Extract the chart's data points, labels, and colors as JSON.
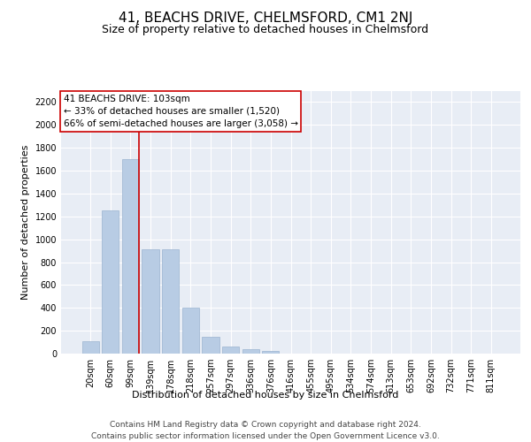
{
  "title": "41, BEACHS DRIVE, CHELMSFORD, CM1 2NJ",
  "subtitle": "Size of property relative to detached houses in Chelmsford",
  "xlabel": "Distribution of detached houses by size in Chelmsford",
  "ylabel": "Number of detached properties",
  "categories": [
    "20sqm",
    "60sqm",
    "99sqm",
    "139sqm",
    "178sqm",
    "218sqm",
    "257sqm",
    "297sqm",
    "336sqm",
    "376sqm",
    "416sqm",
    "455sqm",
    "495sqm",
    "534sqm",
    "574sqm",
    "613sqm",
    "653sqm",
    "692sqm",
    "732sqm",
    "771sqm",
    "811sqm"
  ],
  "values": [
    105,
    1250,
    1700,
    910,
    910,
    400,
    150,
    65,
    35,
    25,
    0,
    0,
    0,
    0,
    0,
    0,
    0,
    0,
    0,
    0,
    0
  ],
  "bar_color": "#b8cce4",
  "bar_edge_color": "#9ab3d0",
  "vline_color": "#cc0000",
  "annotation_text": "41 BEACHS DRIVE: 103sqm\n← 33% of detached houses are smaller (1,520)\n66% of semi-detached houses are larger (3,058) →",
  "annotation_box_color": "#ffffff",
  "annotation_box_edge": "#cc0000",
  "ylim": [
    0,
    2300
  ],
  "yticks": [
    0,
    200,
    400,
    600,
    800,
    1000,
    1200,
    1400,
    1600,
    1800,
    2000,
    2200
  ],
  "plot_bg_color": "#e8edf5",
  "footer_line1": "Contains HM Land Registry data © Crown copyright and database right 2024.",
  "footer_line2": "Contains public sector information licensed under the Open Government Licence v3.0.",
  "title_fontsize": 11,
  "subtitle_fontsize": 9,
  "axis_label_fontsize": 8,
  "tick_fontsize": 7,
  "annotation_fontsize": 7.5,
  "footer_fontsize": 6.5
}
